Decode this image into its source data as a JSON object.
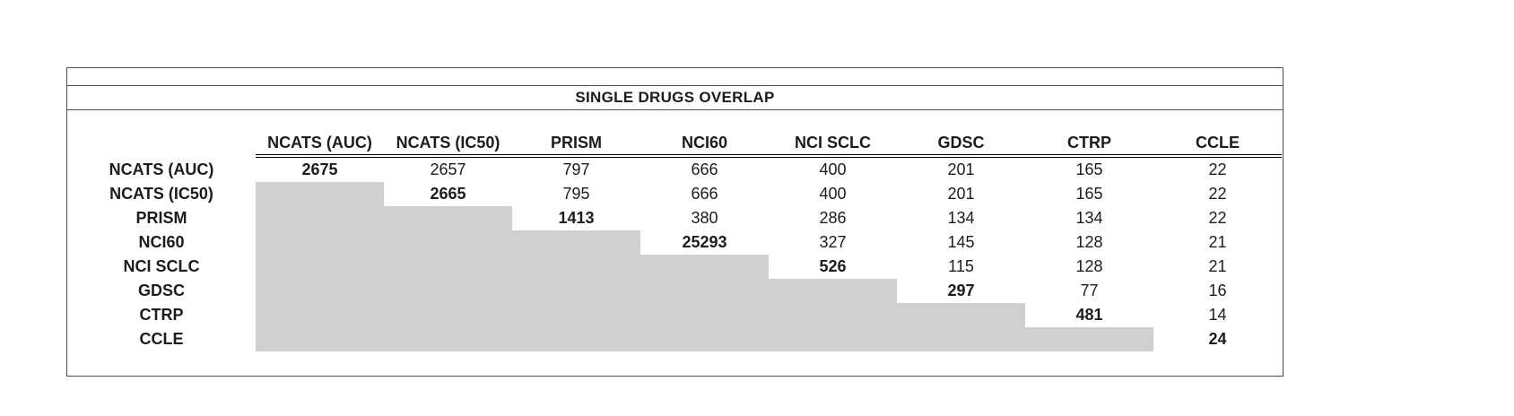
{
  "colors": {
    "lower_triangle_fill": "#d0d0d0",
    "frame_border": "#4f4f4f",
    "header_rule": "#000000",
    "background": "#ffffff"
  },
  "chart_data": {
    "type": "table",
    "title": "SINGLE DRUGS OVERLAP",
    "columns": [
      "NCATS (AUC)",
      "NCATS (IC50)",
      "PRISM",
      "NCI60",
      "NCI SCLC",
      "GDSC",
      "CTRP",
      "CCLE"
    ],
    "rows": [
      "NCATS (AUC)",
      "NCATS (IC50)",
      "PRISM",
      "NCI60",
      "NCI SCLC",
      "GDSC",
      "CTRP",
      "CCLE"
    ],
    "matrix": [
      [
        2675,
        2657,
        797,
        666,
        400,
        201,
        165,
        22
      ],
      [
        null,
        2665,
        795,
        666,
        400,
        201,
        165,
        22
      ],
      [
        null,
        null,
        1413,
        380,
        286,
        134,
        134,
        22
      ],
      [
        null,
        null,
        null,
        25293,
        327,
        145,
        128,
        21
      ],
      [
        null,
        null,
        null,
        null,
        526,
        115,
        128,
        21
      ],
      [
        null,
        null,
        null,
        null,
        null,
        297,
        77,
        16
      ],
      [
        null,
        null,
        null,
        null,
        null,
        null,
        481,
        14
      ],
      [
        null,
        null,
        null,
        null,
        null,
        null,
        null,
        24
      ]
    ],
    "notes": {
      "diagonal_values_bold": true,
      "lower_triangle_shaded_gray": true,
      "double_rule_under_headers": true
    },
    "legend_position": "none",
    "grid": "off"
  }
}
